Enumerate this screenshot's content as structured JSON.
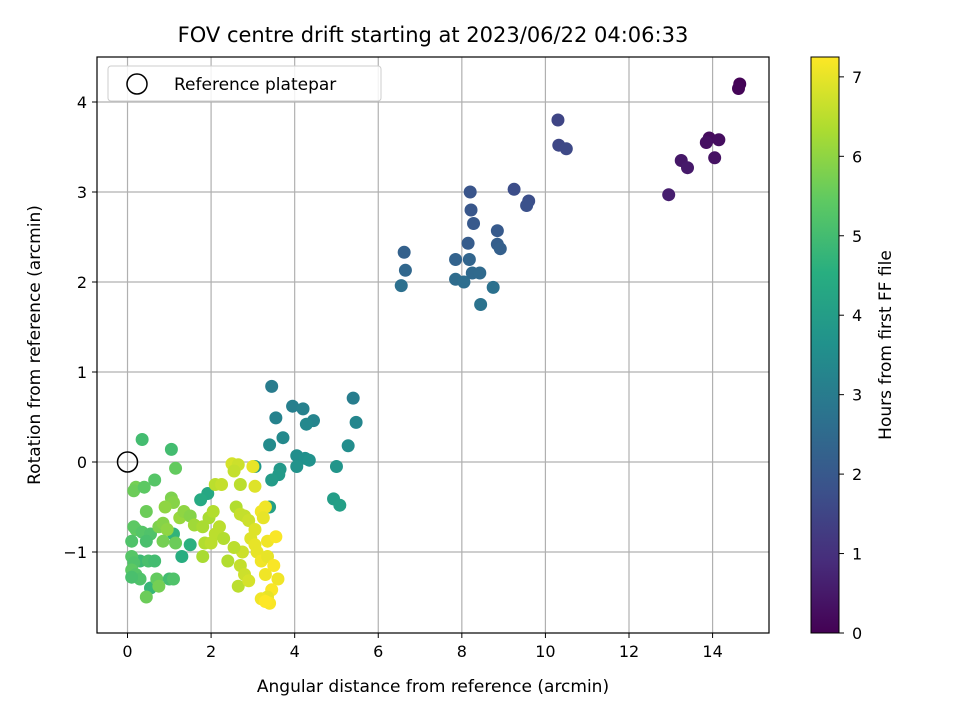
{
  "chart_data": {
    "type": "scatter",
    "title": "FOV centre drift starting at 2023/06/22 04:06:33",
    "xlabel": "Angular distance from reference (arcmin)",
    "ylabel": "Rotation from reference (arcmin)",
    "xlim": [
      -0.73,
      15.35
    ],
    "ylim": [
      -1.9,
      4.5
    ],
    "xticks": [
      0,
      2,
      4,
      6,
      8,
      10,
      12,
      14
    ],
    "yticks": [
      -1,
      0,
      1,
      2,
      3,
      4
    ],
    "xtick_labels": [
      "0",
      "2",
      "4",
      "6",
      "8",
      "10",
      "12",
      "14"
    ],
    "ytick_labels": [
      "−1",
      "0",
      "1",
      "2",
      "3",
      "4"
    ],
    "grid": true,
    "legend": {
      "placement": "top-left",
      "entries": [
        "Reference platepar"
      ]
    },
    "reference_point": {
      "x": 0,
      "y": 0,
      "marker": "open-circle"
    },
    "colorbar": {
      "label": "Hours from first FF file",
      "range": [
        0,
        7.25
      ],
      "ticks": [
        0,
        1,
        2,
        3,
        4,
        5,
        6,
        7
      ],
      "tick_labels": [
        "0",
        "1",
        "2",
        "3",
        "4",
        "5",
        "6",
        "7"
      ],
      "colormap": "viridis"
    },
    "points": [
      {
        "x": 14.65,
        "y": 4.2,
        "t": 0.05
      },
      {
        "x": 14.62,
        "y": 4.15,
        "t": 0.08
      },
      {
        "x": 13.92,
        "y": 3.6,
        "t": 0.2
      },
      {
        "x": 14.15,
        "y": 3.58,
        "t": 0.25
      },
      {
        "x": 13.85,
        "y": 3.55,
        "t": 0.3
      },
      {
        "x": 14.05,
        "y": 3.38,
        "t": 0.35
      },
      {
        "x": 13.25,
        "y": 3.35,
        "t": 0.45
      },
      {
        "x": 13.4,
        "y": 3.27,
        "t": 0.5
      },
      {
        "x": 12.95,
        "y": 2.97,
        "t": 0.6
      },
      {
        "x": 10.3,
        "y": 3.8,
        "t": 1.5
      },
      {
        "x": 10.32,
        "y": 3.52,
        "t": 1.55
      },
      {
        "x": 10.5,
        "y": 3.48,
        "t": 1.6
      },
      {
        "x": 9.25,
        "y": 3.03,
        "t": 1.7
      },
      {
        "x": 9.6,
        "y": 2.9,
        "t": 1.75
      },
      {
        "x": 9.55,
        "y": 2.85,
        "t": 1.8
      },
      {
        "x": 8.2,
        "y": 3.0,
        "t": 1.9
      },
      {
        "x": 8.22,
        "y": 2.8,
        "t": 1.95
      },
      {
        "x": 8.28,
        "y": 2.65,
        "t": 2.0
      },
      {
        "x": 8.85,
        "y": 2.57,
        "t": 2.05
      },
      {
        "x": 8.15,
        "y": 2.43,
        "t": 2.1
      },
      {
        "x": 8.85,
        "y": 2.42,
        "t": 2.15
      },
      {
        "x": 8.92,
        "y": 2.37,
        "t": 2.2
      },
      {
        "x": 6.62,
        "y": 2.33,
        "t": 2.25
      },
      {
        "x": 7.85,
        "y": 2.25,
        "t": 2.3
      },
      {
        "x": 8.18,
        "y": 2.25,
        "t": 2.35
      },
      {
        "x": 6.65,
        "y": 2.13,
        "t": 2.4
      },
      {
        "x": 8.25,
        "y": 2.1,
        "t": 2.45
      },
      {
        "x": 8.43,
        "y": 2.1,
        "t": 2.5
      },
      {
        "x": 7.85,
        "y": 2.03,
        "t": 2.55
      },
      {
        "x": 8.05,
        "y": 2.0,
        "t": 2.6
      },
      {
        "x": 6.55,
        "y": 1.96,
        "t": 2.65
      },
      {
        "x": 8.75,
        "y": 1.94,
        "t": 2.7
      },
      {
        "x": 8.45,
        "y": 1.75,
        "t": 2.75
      },
      {
        "x": 3.45,
        "y": 0.84,
        "t": 3.0
      },
      {
        "x": 5.4,
        "y": 0.71,
        "t": 3.05
      },
      {
        "x": 3.95,
        "y": 0.62,
        "t": 3.1
      },
      {
        "x": 4.2,
        "y": 0.59,
        "t": 3.15
      },
      {
        "x": 3.55,
        "y": 0.49,
        "t": 3.2
      },
      {
        "x": 4.45,
        "y": 0.46,
        "t": 3.25
      },
      {
        "x": 5.47,
        "y": 0.44,
        "t": 3.3
      },
      {
        "x": 4.28,
        "y": 0.42,
        "t": 3.35
      },
      {
        "x": 3.72,
        "y": 0.27,
        "t": 3.4
      },
      {
        "x": 3.4,
        "y": 0.19,
        "t": 3.45
      },
      {
        "x": 5.28,
        "y": 0.18,
        "t": 3.5
      },
      {
        "x": 4.05,
        "y": 0.07,
        "t": 3.55
      },
      {
        "x": 4.25,
        "y": 0.04,
        "t": 3.6
      },
      {
        "x": 4.35,
        "y": 0.02,
        "t": 3.65
      },
      {
        "x": 4.05,
        "y": -0.05,
        "t": 3.7
      },
      {
        "x": 5.0,
        "y": -0.05,
        "t": 3.75
      },
      {
        "x": 3.05,
        "y": -0.05,
        "t": 3.8
      },
      {
        "x": 3.65,
        "y": -0.08,
        "t": 3.85
      },
      {
        "x": 3.62,
        "y": -0.14,
        "t": 3.9
      },
      {
        "x": 3.45,
        "y": -0.2,
        "t": 3.95
      },
      {
        "x": 4.93,
        "y": -0.41,
        "t": 4.0
      },
      {
        "x": 5.08,
        "y": -0.48,
        "t": 4.05
      },
      {
        "x": 3.4,
        "y": -0.5,
        "t": 4.1
      },
      {
        "x": 1.92,
        "y": -0.35,
        "t": 4.3
      },
      {
        "x": 1.75,
        "y": -0.42,
        "t": 4.4
      },
      {
        "x": 1.3,
        "y": -1.05,
        "t": 4.5
      },
      {
        "x": 1.5,
        "y": -0.92,
        "t": 4.6
      },
      {
        "x": 1.1,
        "y": -0.8,
        "t": 4.7
      },
      {
        "x": 0.55,
        "y": -1.4,
        "t": 4.8
      },
      {
        "x": 0.3,
        "y": -1.1,
        "t": 4.9
      },
      {
        "x": 0.35,
        "y": 0.25,
        "t": 5.0
      },
      {
        "x": 1.05,
        "y": 0.14,
        "t": 5.0
      },
      {
        "x": 1.15,
        "y": -0.07,
        "t": 5.5
      },
      {
        "x": 0.65,
        "y": -0.2,
        "t": 5.3
      },
      {
        "x": 0.2,
        "y": -0.28,
        "t": 5.7
      },
      {
        "x": 0.15,
        "y": -0.32,
        "t": 5.6
      },
      {
        "x": 0.4,
        "y": -0.28,
        "t": 5.4
      },
      {
        "x": 1.05,
        "y": -0.4,
        "t": 5.8
      },
      {
        "x": 1.1,
        "y": -0.45,
        "t": 5.9
      },
      {
        "x": 0.45,
        "y": -0.55,
        "t": 5.6
      },
      {
        "x": 0.9,
        "y": -0.5,
        "t": 6.0
      },
      {
        "x": 0.2,
        "y": -0.75,
        "t": 5.5
      },
      {
        "x": 0.15,
        "y": -0.72,
        "t": 5.4
      },
      {
        "x": 0.35,
        "y": -0.78,
        "t": 5.3
      },
      {
        "x": 0.55,
        "y": -0.8,
        "t": 5.2
      },
      {
        "x": 0.75,
        "y": -0.72,
        "t": 5.8
      },
      {
        "x": 0.85,
        "y": -0.68,
        "t": 5.9
      },
      {
        "x": 0.95,
        "y": -0.75,
        "t": 6.0
      },
      {
        "x": 1.25,
        "y": -0.62,
        "t": 6.1
      },
      {
        "x": 1.35,
        "y": -0.55,
        "t": 6.0
      },
      {
        "x": 1.5,
        "y": -0.6,
        "t": 5.9
      },
      {
        "x": 1.6,
        "y": -0.7,
        "t": 6.2
      },
      {
        "x": 1.8,
        "y": -0.72,
        "t": 6.3
      },
      {
        "x": 1.95,
        "y": -0.62,
        "t": 6.3
      },
      {
        "x": 2.05,
        "y": -0.55,
        "t": 6.4
      },
      {
        "x": 2.1,
        "y": -0.8,
        "t": 6.5
      },
      {
        "x": 2.2,
        "y": -0.72,
        "t": 6.5
      },
      {
        "x": 2.3,
        "y": -0.85,
        "t": 6.4
      },
      {
        "x": 0.1,
        "y": -0.88,
        "t": 5.2
      },
      {
        "x": 0.45,
        "y": -0.88,
        "t": 5.1
      },
      {
        "x": 0.85,
        "y": -0.88,
        "t": 5.7
      },
      {
        "x": 1.15,
        "y": -0.9,
        "t": 5.6
      },
      {
        "x": 0.1,
        "y": -1.05,
        "t": 5.3
      },
      {
        "x": 0.15,
        "y": -1.12,
        "t": 5.2
      },
      {
        "x": 0.5,
        "y": -1.1,
        "t": 5.1
      },
      {
        "x": 0.65,
        "y": -1.1,
        "t": 5.0
      },
      {
        "x": 0.1,
        "y": -1.2,
        "t": 5.4
      },
      {
        "x": 0.2,
        "y": -1.25,
        "t": 5.3
      },
      {
        "x": 0.3,
        "y": -1.3,
        "t": 5.2
      },
      {
        "x": 0.1,
        "y": -1.28,
        "t": 5.1
      },
      {
        "x": 0.7,
        "y": -1.3,
        "t": 5.5
      },
      {
        "x": 1.0,
        "y": -1.3,
        "t": 5.0
      },
      {
        "x": 1.1,
        "y": -1.3,
        "t": 5.2
      },
      {
        "x": 0.75,
        "y": -1.38,
        "t": 5.7
      },
      {
        "x": 0.45,
        "y": -1.5,
        "t": 5.6
      },
      {
        "x": 1.85,
        "y": -0.9,
        "t": 6.4
      },
      {
        "x": 1.8,
        "y": -1.05,
        "t": 6.3
      },
      {
        "x": 2.0,
        "y": -0.9,
        "t": 6.5
      },
      {
        "x": 2.1,
        "y": -0.25,
        "t": 6.5
      },
      {
        "x": 2.25,
        "y": -0.25,
        "t": 6.6
      },
      {
        "x": 2.5,
        "y": -0.02,
        "t": 6.8
      },
      {
        "x": 2.65,
        "y": -0.03,
        "t": 6.7
      },
      {
        "x": 2.55,
        "y": -0.1,
        "t": 6.6
      },
      {
        "x": 2.7,
        "y": -0.25,
        "t": 6.5
      },
      {
        "x": 2.6,
        "y": -0.5,
        "t": 6.4
      },
      {
        "x": 2.7,
        "y": -0.58,
        "t": 6.6
      },
      {
        "x": 2.8,
        "y": -0.6,
        "t": 6.6
      },
      {
        "x": 2.9,
        "y": -0.65,
        "t": 6.7
      },
      {
        "x": 3.0,
        "y": -0.05,
        "t": 7.0
      },
      {
        "x": 3.05,
        "y": -0.27,
        "t": 6.9
      },
      {
        "x": 3.2,
        "y": -0.55,
        "t": 7.1
      },
      {
        "x": 3.3,
        "y": -0.5,
        "t": 7.1
      },
      {
        "x": 3.25,
        "y": -0.62,
        "t": 7.0
      },
      {
        "x": 3.35,
        "y": -0.88,
        "t": 7.1
      },
      {
        "x": 3.55,
        "y": -0.83,
        "t": 7.2
      },
      {
        "x": 3.05,
        "y": -0.75,
        "t": 6.9
      },
      {
        "x": 2.95,
        "y": -0.85,
        "t": 6.9
      },
      {
        "x": 3.05,
        "y": -0.92,
        "t": 7.0
      },
      {
        "x": 3.1,
        "y": -1.0,
        "t": 7.0
      },
      {
        "x": 3.2,
        "y": -1.1,
        "t": 7.1
      },
      {
        "x": 3.35,
        "y": -1.05,
        "t": 7.0
      },
      {
        "x": 2.75,
        "y": -1.0,
        "t": 6.7
      },
      {
        "x": 2.7,
        "y": -1.15,
        "t": 6.6
      },
      {
        "x": 2.55,
        "y": -0.95,
        "t": 6.5
      },
      {
        "x": 2.4,
        "y": -1.1,
        "t": 6.4
      },
      {
        "x": 2.8,
        "y": -1.25,
        "t": 6.7
      },
      {
        "x": 2.65,
        "y": -1.38,
        "t": 6.5
      },
      {
        "x": 2.9,
        "y": -1.32,
        "t": 6.8
      },
      {
        "x": 3.3,
        "y": -1.25,
        "t": 7.1
      },
      {
        "x": 3.5,
        "y": -1.15,
        "t": 7.2
      },
      {
        "x": 3.6,
        "y": -1.3,
        "t": 7.1
      },
      {
        "x": 3.45,
        "y": -1.42,
        "t": 7.2
      },
      {
        "x": 3.35,
        "y": -1.5,
        "t": 7.0
      },
      {
        "x": 3.2,
        "y": -1.52,
        "t": 7.1
      },
      {
        "x": 3.4,
        "y": -1.57,
        "t": 7.2
      },
      {
        "x": 3.3,
        "y": -1.55,
        "t": 7.25
      }
    ]
  }
}
